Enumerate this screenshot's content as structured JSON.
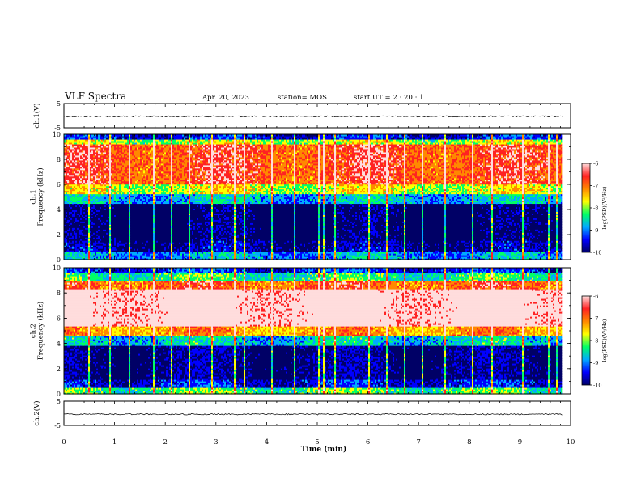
{
  "header": {
    "title": "VLF Spectra",
    "date": "Apr. 20, 2023",
    "station": "station= MOS",
    "start": "start  UT  =   2 : 20 : 1"
  },
  "chart_data": [
    {
      "type": "line",
      "panel": "ch1-waveform",
      "ylabel": "ch.1(V)",
      "ylim": [
        -5,
        5
      ],
      "yticks": [
        "5",
        "-5"
      ],
      "xlim": [
        0,
        10
      ],
      "baseline_value": -0.3,
      "extent_x": [
        0,
        9.85
      ]
    },
    {
      "type": "heatmap",
      "panel": "ch1-spectrogram",
      "ylabel": "ch.1\nFrequency (kHz)",
      "ylim": [
        0,
        10
      ],
      "yticks": [
        "0",
        "2",
        "4",
        "6",
        "8",
        "10"
      ],
      "xlim": [
        0,
        10
      ],
      "extent_x": [
        0,
        9.85
      ],
      "colorbar": {
        "label": "log(PSD)(V²/Hz)",
        "range": [
          -10,
          -6
        ],
        "ticks": [
          "-6",
          "-7",
          "-8",
          "-9",
          "-10"
        ]
      },
      "bands": [
        {
          "from": 0,
          "to": 0.6,
          "level": -8.8
        },
        {
          "from": 0.6,
          "to": 1.5,
          "level": -9.6
        },
        {
          "from": 1.5,
          "to": 4.5,
          "level": -9.9
        },
        {
          "from": 4.5,
          "to": 5.3,
          "level": -8.7
        },
        {
          "from": 5.3,
          "to": 6.0,
          "level": -7.8
        },
        {
          "from": 6.0,
          "to": 9.2,
          "level": -6.9
        },
        {
          "from": 9.2,
          "to": 9.6,
          "level": -7.9
        },
        {
          "from": 9.6,
          "to": 10,
          "level": -9.3
        }
      ],
      "spikes_min": [
        0.48,
        0.9,
        1.28,
        1.75,
        2.1,
        2.45,
        2.9,
        3.35,
        3.55,
        4.1,
        4.55,
        5.0,
        5.1,
        5.35,
        6.0,
        6.35,
        6.7,
        7.05,
        7.5,
        8.05,
        8.45,
        9.05,
        9.55,
        9.72
      ]
    },
    {
      "type": "heatmap",
      "panel": "ch2-spectrogram",
      "ylabel": "ch.2\nFrequency (kHz)",
      "ylim": [
        0,
        10
      ],
      "yticks": [
        "0",
        "2",
        "4",
        "6",
        "8",
        "10"
      ],
      "xlim": [
        0,
        10
      ],
      "extent_x": [
        0,
        9.85
      ],
      "colorbar": {
        "label": "log(PSD)(V²/Hz)",
        "range": [
          -10,
          -6
        ],
        "ticks": [
          "-6",
          "-7",
          "-8",
          "-9",
          "-10"
        ]
      },
      "bands": [
        {
          "from": 0,
          "to": 0.5,
          "level": -8.2
        },
        {
          "from": 0.5,
          "to": 1.2,
          "level": -9.3
        },
        {
          "from": 1.2,
          "to": 3.8,
          "level": -9.7
        },
        {
          "from": 3.8,
          "to": 4.6,
          "level": -8.6
        },
        {
          "from": 4.6,
          "to": 5.4,
          "level": -7.3
        },
        {
          "from": 5.4,
          "to": 8.3,
          "level": -6.1
        },
        {
          "from": 8.3,
          "to": 9.0,
          "level": -7.0
        },
        {
          "from": 9.0,
          "to": 9.6,
          "level": -8.3
        },
        {
          "from": 9.6,
          "to": 10,
          "level": -9.2
        }
      ],
      "spikes_min": [
        0.48,
        0.9,
        1.28,
        1.75,
        2.1,
        2.45,
        2.9,
        3.35,
        3.55,
        4.1,
        4.55,
        5.0,
        5.1,
        5.35,
        6.0,
        6.35,
        6.7,
        7.05,
        7.5,
        8.05,
        8.45,
        9.05,
        9.55,
        9.72
      ]
    },
    {
      "type": "line",
      "panel": "ch2-waveform",
      "ylabel": "ch.2(V)",
      "ylim": [
        -5,
        5
      ],
      "yticks": [
        "5",
        "-5"
      ],
      "xlim": [
        0,
        10
      ],
      "baseline_value": -0.4,
      "extent_x": [
        0,
        9.85
      ]
    }
  ],
  "xaxis": {
    "label": "Time (min)",
    "ticks": [
      "0",
      "1",
      "2",
      "3",
      "4",
      "5",
      "6",
      "7",
      "8",
      "9",
      "10"
    ]
  },
  "colors": {
    "colormap": [
      "#000066",
      "#0000ff",
      "#00aaff",
      "#00ff66",
      "#ffff00",
      "#ff8800",
      "#ff2222",
      "#ffdddd"
    ]
  }
}
